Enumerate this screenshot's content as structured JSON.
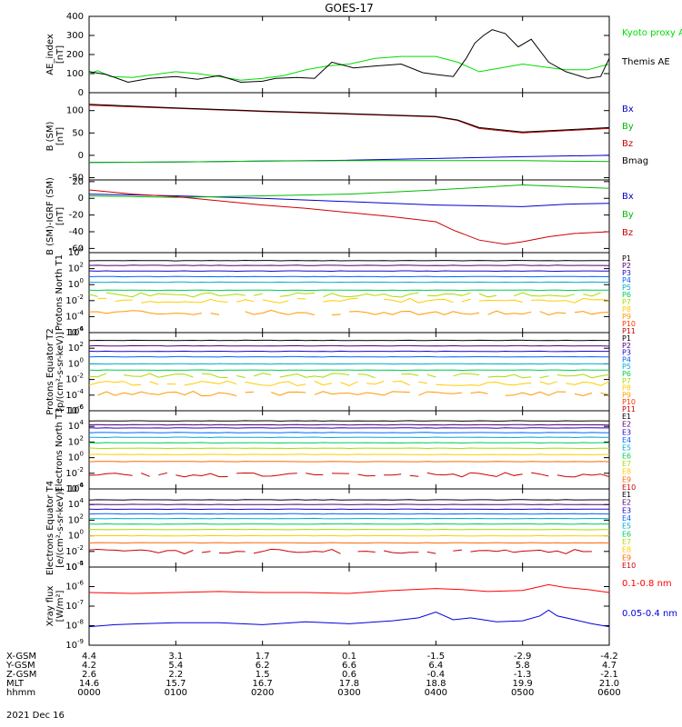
{
  "title": "GOES-17",
  "date_label": "2021 Dec 16",
  "orbit_rows": [
    {
      "label": "X-GSM",
      "values": [
        "4.4",
        "3.1",
        "1.7",
        "0.1",
        "-1.5",
        "-2.9",
        "-4.2"
      ]
    },
    {
      "label": "Y-GSM",
      "values": [
        "4.2",
        "5.4",
        "6.2",
        "6.6",
        "6.4",
        "5.8",
        "4.7"
      ]
    },
    {
      "label": "Z-GSM",
      "values": [
        "2.6",
        "2.2",
        "1.5",
        "0.6",
        "-0.4",
        "-1.3",
        "-2.1"
      ]
    },
    {
      "label": "MLT",
      "values": [
        "14.6",
        "15.7",
        "16.7",
        "17.8",
        "18.8",
        "19.9",
        "21.0"
      ]
    },
    {
      "label": "hhmm",
      "values": [
        "0000",
        "0100",
        "0200",
        "0300",
        "0400",
        "0500",
        "0600"
      ]
    }
  ],
  "chart_data": [
    {
      "type": "line",
      "ylabel": "AE_index [nT]",
      "ylim": [
        0,
        400
      ],
      "ticks": [
        "0",
        "100",
        "200",
        "300",
        "400"
      ],
      "series": [
        {
          "name": "Kyoto proxy AE",
          "color": "#00dd00",
          "x": [
            0,
            0.1,
            0.25,
            0.5,
            0.75,
            1,
            1.25,
            1.5,
            1.75,
            2,
            2.25,
            2.5,
            2.75,
            3,
            3.3,
            3.6,
            4,
            4.25,
            4.5,
            4.75,
            5,
            5.25,
            5.5,
            5.75,
            6
          ],
          "y": [
            100,
            115,
            85,
            80,
            95,
            110,
            100,
            85,
            65,
            75,
            90,
            120,
            140,
            150,
            180,
            190,
            190,
            160,
            110,
            130,
            150,
            135,
            120,
            120,
            150
          ]
        },
        {
          "name": "Themis AE",
          "color": "#000000",
          "x": [
            0,
            0.2,
            0.45,
            0.7,
            1,
            1.25,
            1.5,
            1.75,
            2,
            2.15,
            2.4,
            2.6,
            2.8,
            3.05,
            3.3,
            3.6,
            3.85,
            4,
            4.2,
            4.35,
            4.45,
            4.55,
            4.65,
            4.8,
            4.95,
            5.1,
            5.3,
            5.5,
            5.75,
            5.9,
            6
          ],
          "y": [
            110,
            95,
            55,
            75,
            85,
            70,
            90,
            55,
            60,
            75,
            80,
            75,
            160,
            130,
            140,
            150,
            105,
            95,
            85,
            180,
            260,
            300,
            330,
            310,
            240,
            280,
            160,
            110,
            75,
            85,
            180
          ]
        }
      ]
    },
    {
      "type": "line",
      "ylabel": "B (SM) [nT]",
      "ylim": [
        -55,
        140
      ],
      "ticks": [
        "-50",
        "0",
        "50",
        "100"
      ],
      "series": [
        {
          "name": "Bx",
          "color": "#0000cc",
          "x": [
            0,
            1,
            2,
            3,
            4,
            5,
            6
          ],
          "y": [
            -16,
            -15,
            -13,
            -11,
            -7,
            -3,
            0
          ]
        },
        {
          "name": "By",
          "color": "#00bb00",
          "x": [
            0,
            1,
            2,
            3,
            4,
            5,
            6
          ],
          "y": [
            -16,
            -15,
            -13,
            -12,
            -12,
            -12,
            -14
          ]
        },
        {
          "name": "Bz",
          "color": "#cc0000",
          "x": [
            0,
            1,
            2,
            3,
            4,
            4.25,
            4.5,
            5,
            5.5,
            6
          ],
          "y": [
            112,
            105,
            98,
            92,
            86,
            78,
            60,
            50,
            55,
            60
          ]
        },
        {
          "name": "Bmag",
          "color": "#000000",
          "x": [
            0,
            1,
            2,
            3,
            4,
            4.25,
            4.5,
            5,
            5.5,
            6
          ],
          "y": [
            114,
            106,
            99,
            93,
            87,
            79,
            62,
            52,
            57,
            62
          ]
        }
      ]
    },
    {
      "type": "line",
      "ylabel": "B (SM)-IGRF (SM) [nT]",
      "ylim": [
        -65,
        22
      ],
      "ticks": [
        "-60",
        "-40",
        "-20",
        "0",
        "20"
      ],
      "series": [
        {
          "name": "Bx",
          "color": "#0000cc",
          "x": [
            0,
            1,
            2,
            3,
            4,
            5,
            5.5,
            6
          ],
          "y": [
            5,
            3,
            0,
            -4,
            -8,
            -10,
            -7,
            -6
          ]
        },
        {
          "name": "By",
          "color": "#00bb00",
          "x": [
            0,
            1,
            2,
            3,
            4,
            5,
            5.5,
            6
          ],
          "y": [
            3,
            1,
            3,
            5,
            10,
            16,
            14,
            12
          ]
        },
        {
          "name": "Bz",
          "color": "#cc0000",
          "x": [
            0,
            0.5,
            1,
            1.5,
            2,
            2.5,
            3,
            3.5,
            4,
            4.2,
            4.5,
            4.8,
            5,
            5.3,
            5.6,
            6
          ],
          "y": [
            10,
            5,
            2,
            -3,
            -8,
            -12,
            -17,
            -22,
            -28,
            -38,
            -50,
            -55,
            -52,
            -46,
            -42,
            -40
          ]
        }
      ]
    },
    {
      "type": "line",
      "ylabel": "Protons North T1",
      "scale": "log",
      "ylim": [
        -6,
        4
      ],
      "ticks": [
        "10^-6",
        "10^-4",
        "10^-2",
        "10^0",
        "10^2",
        "10^4"
      ],
      "series": [
        {
          "name": "P1",
          "color": "#000000",
          "level": 3.0
        },
        {
          "name": "P2",
          "color": "#550077",
          "level": 2.4
        },
        {
          "name": "P3",
          "color": "#2200cc",
          "level": 1.7
        },
        {
          "name": "P4",
          "color": "#0066ff",
          "level": 1.0
        },
        {
          "name": "P5",
          "color": "#00aacc",
          "level": 0.3
        },
        {
          "name": "P6",
          "color": "#00cc55",
          "level": -0.7
        },
        {
          "name": "P7",
          "color": "#aadd00",
          "level": -1.3
        },
        {
          "name": "P8",
          "color": "#ffcc00",
          "level": -2.0
        },
        {
          "name": "P9",
          "color": "#ff9900",
          "level": -3.5
        },
        {
          "name": "P10",
          "color": "#ff3300",
          "level": null
        },
        {
          "name": "P11",
          "color": "#cc0000",
          "level": null
        }
      ]
    },
    {
      "type": "line",
      "ylabel": "Protons Equator T2 [p/(cm²-s-sr-keV)]",
      "scale": "log",
      "ylim": [
        -6,
        4
      ],
      "ticks": [
        "10^-6",
        "10^-4",
        "10^-2",
        "10^0",
        "10^2",
        "10^4"
      ],
      "series": [
        {
          "name": "P1",
          "color": "#000000",
          "level": 3.0
        },
        {
          "name": "P2",
          "color": "#550077",
          "level": 2.3
        },
        {
          "name": "P3",
          "color": "#2200cc",
          "level": 1.6
        },
        {
          "name": "P4",
          "color": "#0066ff",
          "level": 0.9
        },
        {
          "name": "P5",
          "color": "#00aacc",
          "level": 0.0
        },
        {
          "name": "P6",
          "color": "#00cc55",
          "level": -0.8
        },
        {
          "name": "P7",
          "color": "#aadd00",
          "level": -1.5
        },
        {
          "name": "P8",
          "color": "#ffcc00",
          "level": -2.5
        },
        {
          "name": "P9",
          "color": "#ff9900",
          "level": -3.8
        },
        {
          "name": "P10",
          "color": "#ff3300",
          "level": null
        },
        {
          "name": "P11",
          "color": "#cc0000",
          "level": null
        }
      ]
    },
    {
      "type": "line",
      "ylabel": "Electrons North T3",
      "scale": "log",
      "ylim": [
        -4,
        6
      ],
      "ticks": [
        "10^-4",
        "10^-2",
        "10^0",
        "10^2",
        "10^4",
        "10^6"
      ],
      "series": [
        {
          "name": "E1",
          "color": "#000000",
          "level": 4.7
        },
        {
          "name": "E2",
          "color": "#550077",
          "level": 4.2
        },
        {
          "name": "E3",
          "color": "#2200cc",
          "level": 3.8
        },
        {
          "name": "E4",
          "color": "#0066ff",
          "level": 3.2
        },
        {
          "name": "E5",
          "color": "#00aacc",
          "level": 2.6
        },
        {
          "name": "E6",
          "color": "#00cc55",
          "level": 1.9
        },
        {
          "name": "E7",
          "color": "#aadd00",
          "level": 1.2
        },
        {
          "name": "E8",
          "color": "#ffcc00",
          "level": 0.4
        },
        {
          "name": "E9",
          "color": "#ff6600",
          "level": -0.5
        },
        {
          "name": "E10",
          "color": "#cc0000",
          "level": -2.2
        }
      ]
    },
    {
      "type": "line",
      "ylabel": "Electrons Equator T4 [e/(cm²-s-sr-keV)]",
      "scale": "log",
      "ylim": [
        -4,
        6
      ],
      "ticks": [
        "10^-4",
        "10^-2",
        "10^0",
        "10^2",
        "10^4",
        "10^6"
      ],
      "series": [
        {
          "name": "E1",
          "color": "#000000",
          "level": 4.6
        },
        {
          "name": "E2",
          "color": "#550077",
          "level": 4.0
        },
        {
          "name": "E3",
          "color": "#2200cc",
          "level": 3.4
        },
        {
          "name": "E4",
          "color": "#0066ff",
          "level": 2.8
        },
        {
          "name": "E5",
          "color": "#00aacc",
          "level": 2.2
        },
        {
          "name": "E6",
          "color": "#00cc55",
          "level": 1.5
        },
        {
          "name": "E7",
          "color": "#aadd00",
          "level": 0.8
        },
        {
          "name": "E8",
          "color": "#ffcc00",
          "level": 0.0
        },
        {
          "name": "E9",
          "color": "#ff6600",
          "level": -0.9
        },
        {
          "name": "E10",
          "color": "#cc0000",
          "level": -2.0
        }
      ]
    },
    {
      "type": "line",
      "ylabel": "Xray flux [W/m²]",
      "scale": "log",
      "ylim": [
        -9,
        -5
      ],
      "ticks": [
        "10^-9",
        "10^-8",
        "10^-7",
        "10^-6",
        "10^-5"
      ],
      "series": [
        {
          "name": "0.1-0.8 nm",
          "color": "#ff0000",
          "x": [
            0,
            0.5,
            1,
            1.5,
            2,
            2.5,
            3,
            3.5,
            4,
            4.3,
            4.6,
            5,
            5.3,
            5.5,
            5.75,
            6
          ],
          "y": [
            -6.3,
            -6.35,
            -6.3,
            -6.25,
            -6.3,
            -6.3,
            -6.35,
            -6.2,
            -6.1,
            -6.15,
            -6.25,
            -6.2,
            -5.9,
            -6.05,
            -6.15,
            -6.3
          ]
        },
        {
          "name": "0.05-0.4 nm",
          "color": "#0000dd",
          "x": [
            0,
            0.3,
            0.6,
            1,
            1.5,
            2,
            2.5,
            3,
            3.5,
            3.8,
            4,
            4.2,
            4.4,
            4.7,
            5,
            5.2,
            5.3,
            5.4,
            5.6,
            5.8,
            6
          ],
          "y": [
            -8.05,
            -7.95,
            -7.9,
            -7.85,
            -7.85,
            -7.95,
            -7.8,
            -7.9,
            -7.75,
            -7.6,
            -7.3,
            -7.7,
            -7.6,
            -7.8,
            -7.75,
            -7.5,
            -7.2,
            -7.5,
            -7.7,
            -7.9,
            -8.05
          ]
        }
      ]
    }
  ]
}
